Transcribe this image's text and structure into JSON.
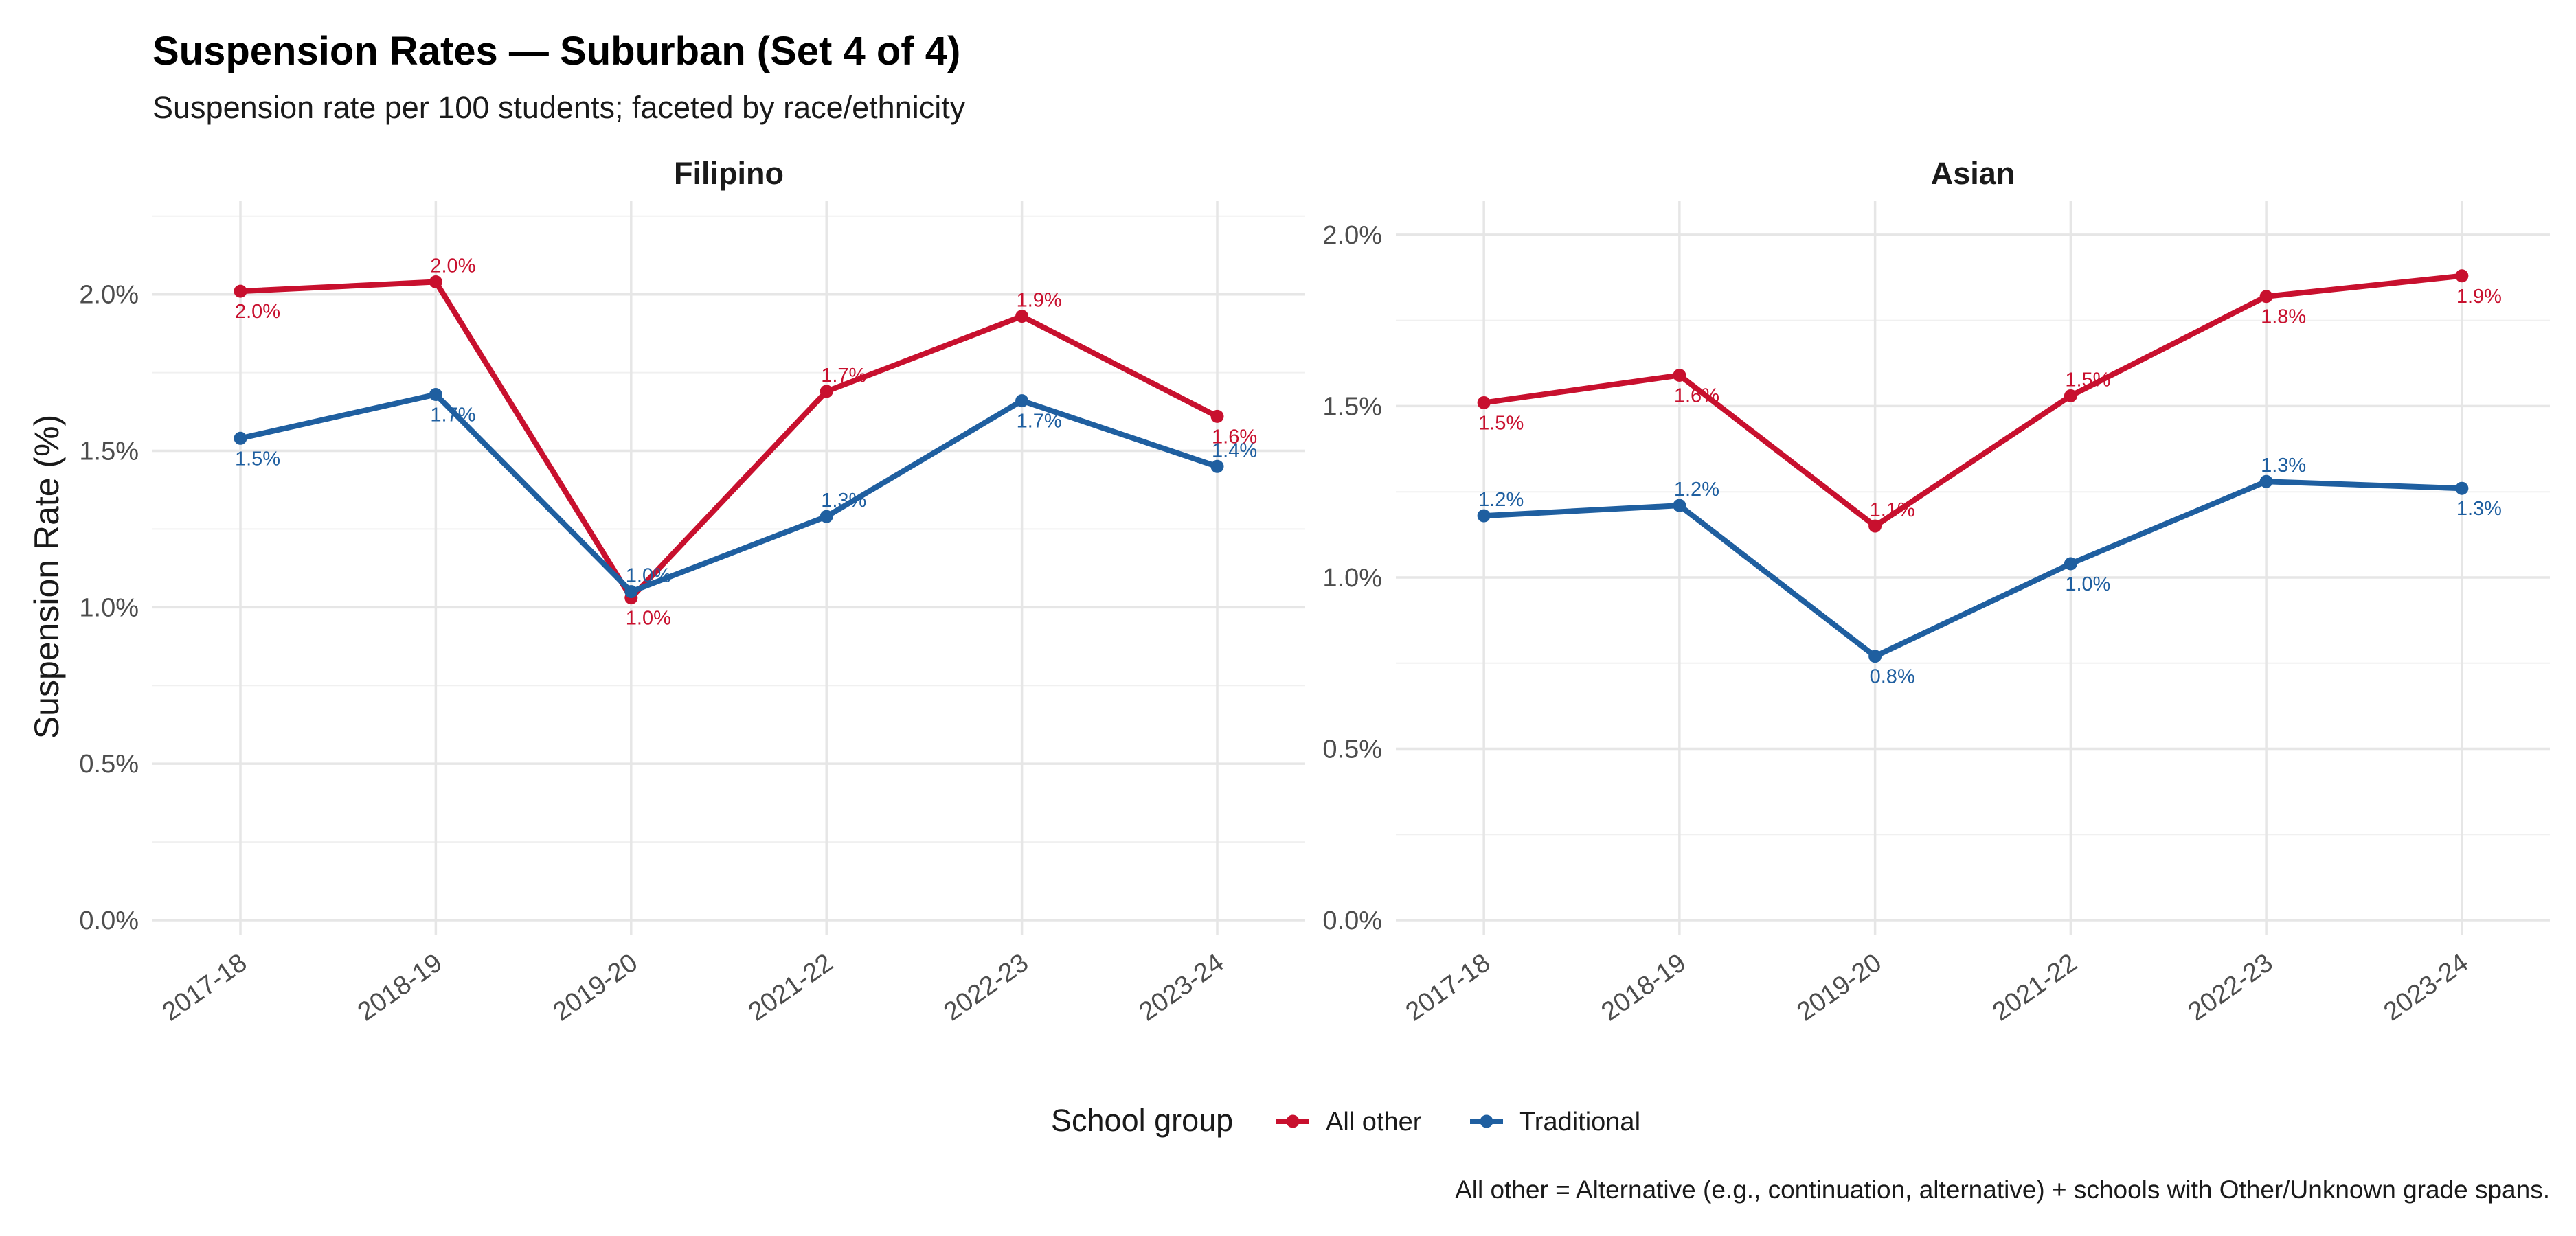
{
  "chart_data": {
    "type": "line",
    "title": "Suspension Rates — Suburban (Set 4 of 4)",
    "subtitle": "Suspension rate per 100 students; faceted by race/ethnicity",
    "ylabel": "Suspension Rate (%)",
    "xlabel": "",
    "categories": [
      "2017-18",
      "2018-19",
      "2019-20",
      "2021-22",
      "2022-23",
      "2023-24"
    ],
    "legend": {
      "title": "School group",
      "position": "bottom",
      "items": [
        {
          "name": "All other",
          "color": "#c8102e"
        },
        {
          "name": "Traditional",
          "color": "#1f5fa0"
        }
      ]
    },
    "caption": "All other = Alternative (e.g., continuation, alternative) + schools with Other/Unknown grade spans.",
    "grid": true,
    "panels": [
      {
        "facet": "Filipino",
        "ylim": [
          0,
          2.3
        ],
        "yticks": [
          0,
          0.5,
          1.0,
          1.5,
          2.0
        ],
        "ytick_labels": [
          "0.0%",
          "0.5%",
          "1.0%",
          "1.5%",
          "2.0%"
        ],
        "series": [
          {
            "name": "All other",
            "color": "#c8102e",
            "values": [
              2.01,
              2.04,
              1.03,
              1.69,
              1.93,
              1.61
            ],
            "labels": [
              "2.0%",
              "2.0%",
              "1.0%",
              "1.7%",
              "1.9%",
              "1.6%"
            ],
            "label_pos": [
              "below",
              "above",
              "below",
              "above",
              "above",
              "below"
            ]
          },
          {
            "name": "Traditional",
            "color": "#1f5fa0",
            "values": [
              1.54,
              1.68,
              1.05,
              1.29,
              1.66,
              1.45
            ],
            "labels": [
              "1.5%",
              "1.7%",
              "1.0%",
              "1.3%",
              "1.7%",
              "1.4%"
            ],
            "label_pos": [
              "below",
              "below",
              "above",
              "above",
              "below",
              "above"
            ]
          }
        ]
      },
      {
        "facet": "Asian",
        "ylim": [
          0,
          2.1
        ],
        "yticks": [
          0,
          0.5,
          1.0,
          1.5,
          2.0
        ],
        "ytick_labels": [
          "0.0%",
          "0.5%",
          "1.0%",
          "1.5%",
          "2.0%"
        ],
        "series": [
          {
            "name": "All other",
            "color": "#c8102e",
            "values": [
              1.51,
              1.59,
              1.15,
              1.53,
              1.82,
              1.88
            ],
            "labels": [
              "1.5%",
              "1.6%",
              "1.1%",
              "1.5%",
              "1.8%",
              "1.9%"
            ],
            "label_pos": [
              "below",
              "below",
              "above",
              "above",
              "below",
              "below"
            ]
          },
          {
            "name": "Traditional",
            "color": "#1f5fa0",
            "values": [
              1.18,
              1.21,
              0.77,
              1.04,
              1.28,
              1.26
            ],
            "labels": [
              "1.2%",
              "1.2%",
              "0.8%",
              "1.0%",
              "1.3%",
              "1.3%"
            ],
            "label_pos": [
              "above",
              "above",
              "below",
              "below",
              "above",
              "below"
            ]
          }
        ]
      }
    ]
  }
}
